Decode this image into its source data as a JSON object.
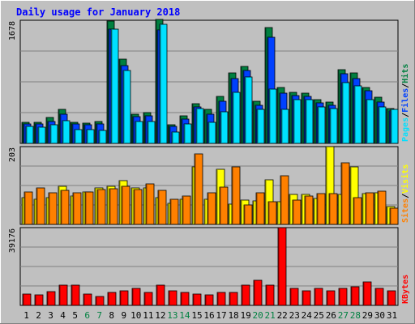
{
  "title": "Daily usage for January 2018",
  "colors": {
    "background": "#c0c0c0",
    "title": "#0000ff",
    "hits": "#008040",
    "files": "#0040ff",
    "pages": "#00e0ff",
    "visits": "#ffff00",
    "sites": "#ff8000",
    "kbytes": "#ff0000",
    "weekend_label": "#008040",
    "weekday_label": "#000000"
  },
  "chart_data": [
    {
      "type": "bar",
      "panel": "hits-files-pages",
      "max_label": "1678",
      "ylim": [
        0,
        1678
      ],
      "grid": true,
      "legend_parts": [
        "Pages",
        "/",
        "Files",
        "/",
        "Hits"
      ],
      "legend_colors": [
        "#00e0ff",
        "#000000",
        "#0040ff",
        "#000000",
        "#008040"
      ],
      "legend_placement": "right-vertical",
      "series": [
        {
          "name": "Hits",
          "values": [
            290,
            290,
            350,
            460,
            290,
            280,
            300,
            1665,
            1150,
            400,
            420,
            1690,
            250,
            370,
            540,
            460,
            640,
            960,
            1050,
            570,
            1580,
            760,
            700,
            680,
            600,
            560,
            1000,
            960,
            760,
            630,
            480
          ]
        },
        {
          "name": "Files",
          "values": [
            260,
            260,
            300,
            400,
            260,
            250,
            260,
            1560,
            1060,
            360,
            370,
            1545,
            230,
            330,
            500,
            400,
            570,
            880,
            990,
            520,
            1450,
            680,
            650,
            640,
            550,
            520,
            950,
            880,
            720,
            560,
            440
          ]
        },
        {
          "name": "Pages",
          "values": [
            230,
            220,
            250,
            310,
            190,
            190,
            180,
            1560,
            990,
            300,
            300,
            1620,
            150,
            270,
            480,
            290,
            430,
            690,
            900,
            460,
            740,
            460,
            600,
            600,
            500,
            470,
            830,
            780,
            600,
            500,
            460
          ]
        }
      ]
    },
    {
      "type": "bar",
      "panel": "visits-sites",
      "max_label": "203",
      "ylim": [
        0,
        203
      ],
      "grid": true,
      "legend_parts": [
        "Sites",
        "/",
        "Visits"
      ],
      "legend_colors": [
        "#ff8000",
        "#000000",
        "#ffff00"
      ],
      "legend_placement": "right-vertical",
      "series": [
        {
          "name": "Visits",
          "values": [
            70,
            65,
            70,
            100,
            75,
            85,
            95,
            100,
            115,
            95,
            95,
            70,
            55,
            65,
            150,
            65,
            143,
            52,
            63,
            62,
            116,
            60,
            78,
            78,
            68,
            203,
            78,
            151,
            80,
            82,
            46
          ]
        },
        {
          "name": "Sites",
          "values": [
            84,
            95,
            83,
            88,
            83,
            84,
            90,
            94,
            100,
            90,
            105,
            88,
            65,
            75,
            185,
            83,
            97,
            150,
            50,
            82,
            60,
            126,
            63,
            75,
            80,
            80,
            160,
            70,
            83,
            87,
            43
          ]
        }
      ]
    },
    {
      "type": "bar",
      "panel": "kbytes",
      "max_label": "39176",
      "ylim": [
        0,
        39176
      ],
      "grid": true,
      "legend_parts": [
        "KBytes"
      ],
      "legend_colors": [
        "#ff0000"
      ],
      "legend_placement": "right-vertical",
      "series": [
        {
          "name": "KBytes",
          "values": [
            5800,
            5300,
            6900,
            10000,
            10000,
            5600,
            4300,
            6400,
            7500,
            8700,
            6400,
            10000,
            7300,
            6400,
            5600,
            5300,
            6400,
            6400,
            10000,
            12700,
            10000,
            39176,
            8500,
            7200,
            8400,
            7400,
            8700,
            9500,
            11800,
            8500,
            7200
          ]
        }
      ]
    }
  ],
  "x_axis": {
    "categories": [
      "1",
      "2",
      "3",
      "4",
      "5",
      "6",
      "7",
      "8",
      "9",
      "10",
      "11",
      "12",
      "13",
      "14",
      "15",
      "16",
      "17",
      "18",
      "19",
      "20",
      "21",
      "22",
      "23",
      "24",
      "25",
      "26",
      "27",
      "28",
      "29",
      "30",
      "31"
    ],
    "weekend_days": [
      "6",
      "7",
      "13",
      "14",
      "20",
      "21",
      "27",
      "28"
    ]
  }
}
